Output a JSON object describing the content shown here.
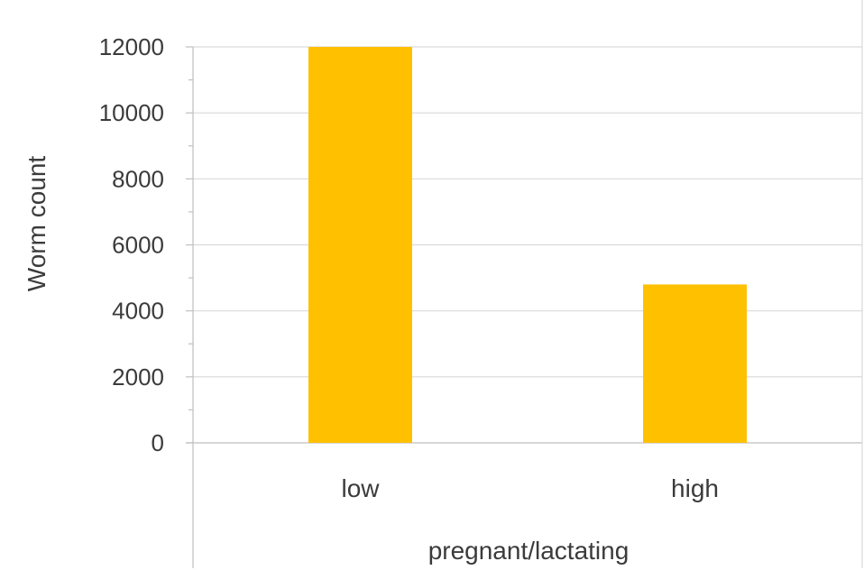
{
  "chart_data": {
    "type": "bar",
    "categories": [
      "low",
      "high"
    ],
    "values": [
      12000,
      4800
    ],
    "xlabel": "pregnant/lactating",
    "ylabel": "Worm count",
    "ylim": [
      0,
      12000
    ],
    "yticks": [
      0,
      2000,
      4000,
      6000,
      8000,
      10000,
      12000
    ],
    "grid": true,
    "legend": "none",
    "bar_color": "#FFC000",
    "grid_color": "#d9d9d9",
    "text_color": "#3b3b3b"
  }
}
